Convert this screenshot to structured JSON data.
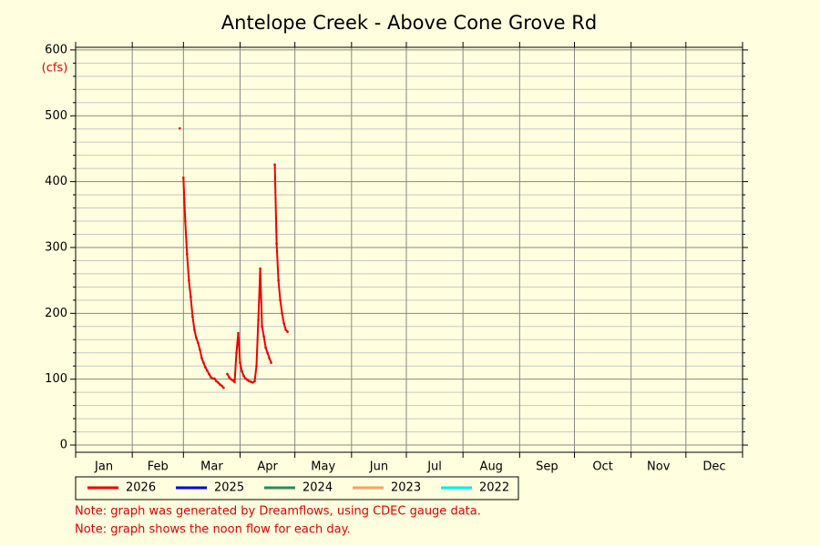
{
  "chart_data": {
    "type": "line",
    "title": "Antelope Creek - Above Cone Grove Rd",
    "y_unit": "(cfs)",
    "months": [
      "Jan",
      "Feb",
      "Mar",
      "Apr",
      "May",
      "Jun",
      "Jul",
      "Aug",
      "Sep",
      "Oct",
      "Nov",
      "Dec"
    ],
    "xgrid": [
      0,
      31,
      59,
      90,
      120,
      151,
      181,
      212,
      243,
      273,
      304,
      334,
      365
    ],
    "xlim": [
      0,
      365
    ],
    "ylim": [
      -11,
      604
    ],
    "yticks": [
      0,
      100,
      200,
      300,
      400,
      500,
      600
    ],
    "yminorticks": [
      20,
      40,
      60,
      80,
      120,
      140,
      160,
      180,
      220,
      240,
      260,
      280,
      320,
      340,
      360,
      380,
      420,
      440,
      460,
      480,
      520,
      540,
      560,
      580
    ],
    "grid": true,
    "x": [
      57,
      58,
      59,
      60,
      61,
      62,
      63,
      64,
      65,
      66,
      67,
      68,
      69,
      70,
      71,
      72,
      73,
      74,
      75,
      76,
      77,
      78,
      79,
      80,
      81,
      82,
      83,
      84,
      85,
      86,
      87,
      88,
      89,
      90,
      91,
      92,
      93,
      94,
      95,
      96,
      97,
      98,
      99,
      100,
      101,
      102,
      103,
      104,
      105,
      106,
      107,
      108,
      109,
      110,
      111,
      112,
      113,
      114,
      115,
      116
    ],
    "series": [
      {
        "name": "2026",
        "color": "#ee0000",
        "values": [
          481,
          null,
          406,
          340,
          290,
          250,
          225,
          195,
          175,
          163,
          155,
          145,
          132,
          125,
          118,
          113,
          108,
          103,
          101,
          101,
          97,
          95,
          92,
          90,
          87,
          null,
          108,
          103,
          100,
          98,
          96,
          140,
          170,
          125,
          112,
          105,
          101,
          99,
          97,
          96,
          95,
          97,
          120,
          190,
          268,
          180,
          165,
          148,
          140,
          132,
          125,
          null,
          426,
          306,
          250,
          220,
          200,
          185,
          175,
          172
        ]
      },
      {
        "name": "2025",
        "color": "#0000dd"
      },
      {
        "name": "2024",
        "color": "#2e8b57"
      },
      {
        "name": "2023",
        "color": "#f4a460"
      },
      {
        "name": "2022",
        "color": "#00eeee"
      }
    ],
    "notes": [
      "Note: graph was generated by Dreamflows, using CDEC gauge data.",
      "Note: graph shows the noon flow for each day."
    ]
  }
}
